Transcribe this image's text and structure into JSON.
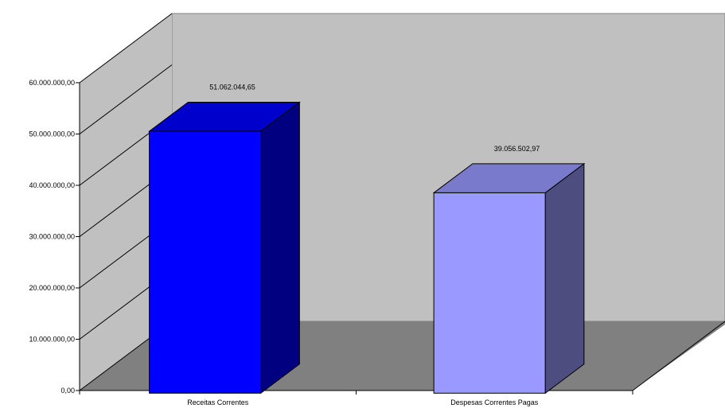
{
  "chart_data": {
    "type": "bar",
    "categories": [
      "Receitas Correntes",
      "Despesas Correntes Pagas"
    ],
    "values": [
      51062044.65,
      39056502.97
    ],
    "value_labels": [
      "51.062.044,65",
      "39.056.502,97"
    ],
    "ylim": [
      0,
      60000000
    ],
    "yticks": [
      0,
      10000000,
      20000000,
      30000000,
      40000000,
      50000000,
      60000000
    ],
    "ytick_labels": [
      "0,00",
      "10.000.000,00",
      "20.000.000,00",
      "30.000.000,00",
      "40.000.000,00",
      "50.000.000,00",
      "60.000.000,00"
    ],
    "grid": false,
    "style": "3d-column",
    "colors": {
      "wall": "#c0c0c0",
      "floor": "#808080",
      "bar_1_front": "#0000ff",
      "bar_1_top": "#0000cc",
      "bar_1_side": "#000080",
      "bar_2_front": "#9999ff",
      "bar_2_top": "#7a7acc",
      "bar_2_side": "#4d4d80"
    }
  }
}
